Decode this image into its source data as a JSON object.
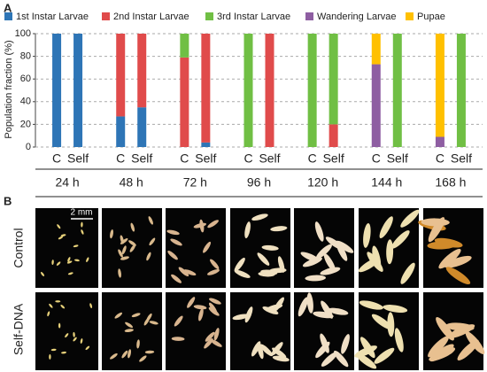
{
  "chart_data": {
    "type": "stacked-bar",
    "panel_label": "A",
    "ylabel": "Population fraction (%)",
    "categories": [
      "C",
      "Self",
      "C",
      "Self",
      "C",
      "Self",
      "C",
      "Self",
      "C",
      "Self",
      "C",
      "Self",
      "C",
      "Self"
    ],
    "groups": [
      "24 h",
      "48 h",
      "72 h",
      "96 h",
      "120 h",
      "144 h",
      "168 h"
    ],
    "series": [
      {
        "name": "1st Instar Larvae",
        "color": "#2e75b6",
        "values": [
          100,
          100,
          27,
          35,
          0,
          4,
          0,
          0,
          0,
          0,
          0,
          0,
          0,
          0
        ]
      },
      {
        "name": "2nd Instar Larvae",
        "color": "#e04b4b",
        "values": [
          0,
          0,
          73,
          65,
          79,
          96,
          0,
          100,
          0,
          20,
          0,
          0,
          0,
          0
        ]
      },
      {
        "name": "3rd Instar Larvae",
        "color": "#70bf44",
        "values": [
          0,
          0,
          0,
          0,
          21,
          0,
          100,
          0,
          100,
          80,
          0,
          100,
          0,
          100
        ]
      },
      {
        "name": "Wandering Larvae",
        "color": "#8e5ea2",
        "values": [
          0,
          0,
          0,
          0,
          0,
          0,
          0,
          0,
          0,
          0,
          73,
          0,
          9,
          0
        ]
      },
      {
        "name": "Pupae",
        "color": "#ffc000",
        "values": [
          0,
          0,
          0,
          0,
          0,
          0,
          0,
          0,
          0,
          0,
          27,
          0,
          91,
          0
        ]
      }
    ],
    "ylim": [
      0,
      100
    ],
    "yticks": [
      0,
      20,
      40,
      60,
      80,
      100
    ],
    "grid": true,
    "legend": "top"
  },
  "images": {
    "panel_label": "B",
    "scale_bar": "2 mm",
    "row_labels": [
      "Control",
      "Self-DNA"
    ]
  }
}
